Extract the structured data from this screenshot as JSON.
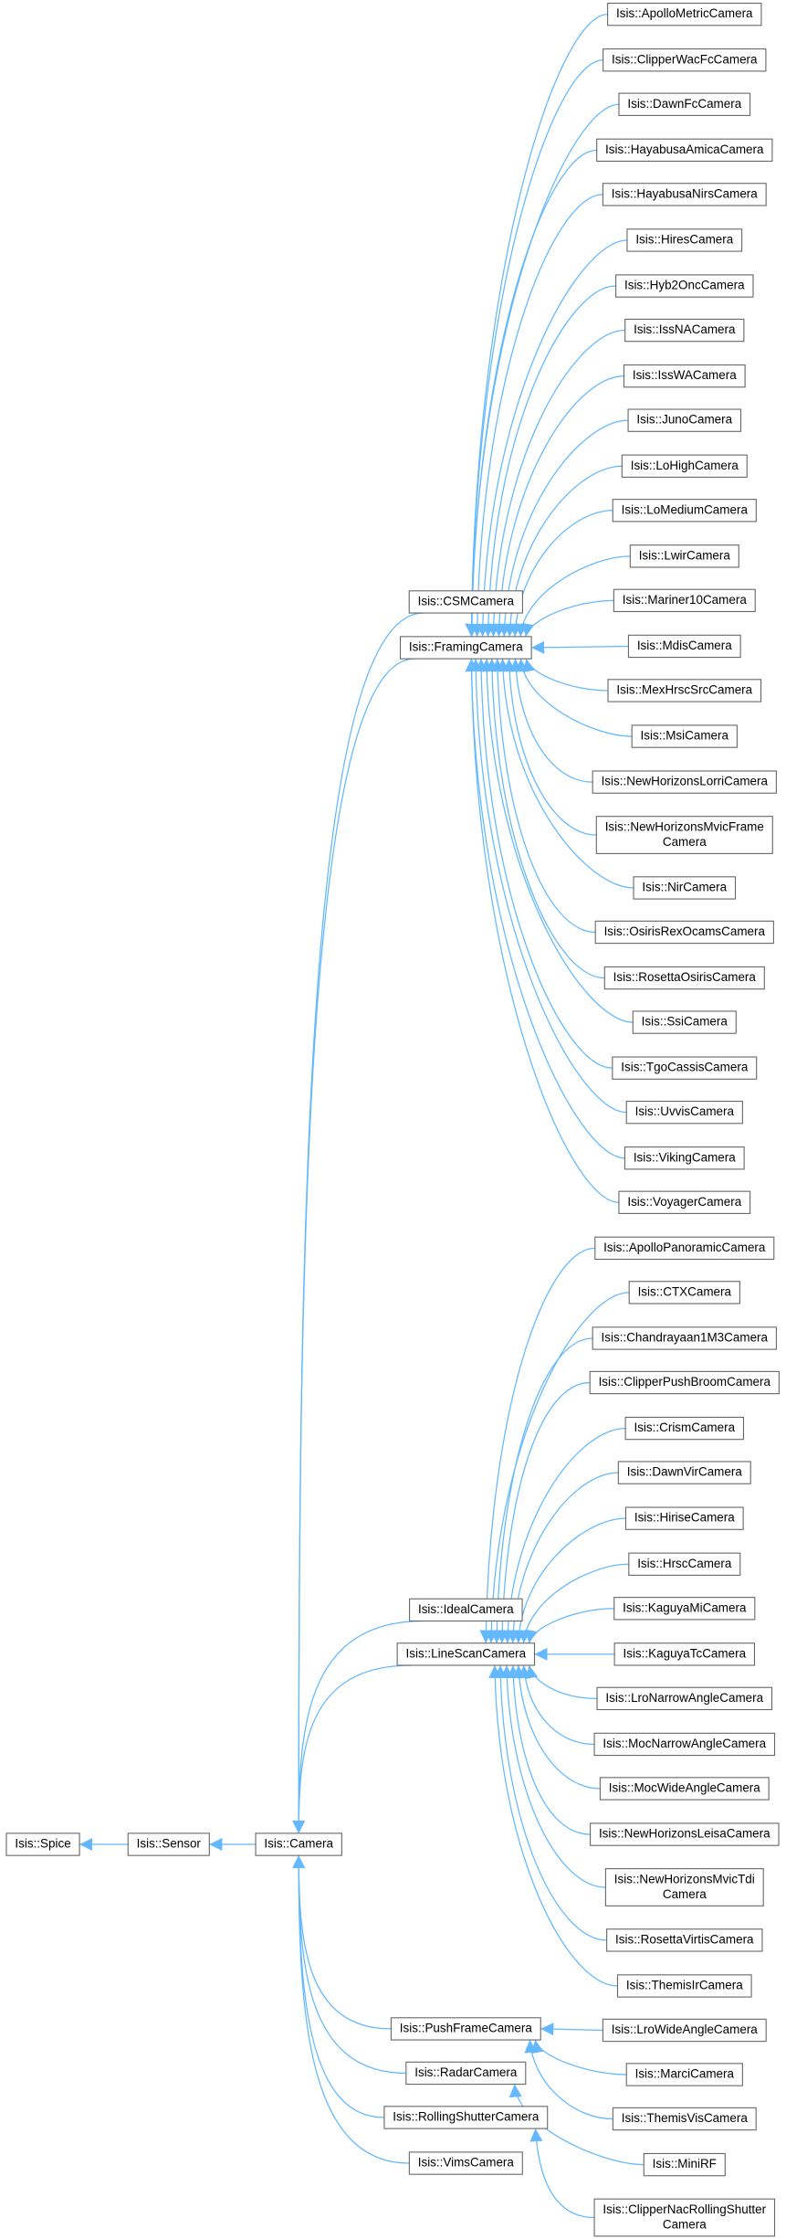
{
  "nodes": [
    {
      "label": [
        "Isis::Spice"
      ]
    },
    {
      "label": [
        "Isis::Sensor"
      ]
    },
    {
      "label": [
        "Isis::Camera"
      ]
    },
    {
      "label": [
        "Isis::CSMCamera"
      ]
    },
    {
      "label": [
        "Isis::FramingCamera"
      ]
    },
    {
      "label": [
        "Isis::IdealCamera"
      ]
    },
    {
      "label": [
        "Isis::LineScanCamera"
      ]
    },
    {
      "label": [
        "Isis::PushFrameCamera"
      ]
    },
    {
      "label": [
        "Isis::RadarCamera"
      ]
    },
    {
      "label": [
        "Isis::RollingShutterCamera"
      ]
    },
    {
      "label": [
        "Isis::VimsCamera"
      ]
    },
    {
      "label": [
        "Isis::ApolloMetricCamera"
      ]
    },
    {
      "label": [
        "Isis::ClipperWacFcCamera"
      ]
    },
    {
      "label": [
        "Isis::DawnFcCamera"
      ]
    },
    {
      "label": [
        "Isis::HayabusaAmicaCamera"
      ]
    },
    {
      "label": [
        "Isis::HayabusaNirsCamera"
      ]
    },
    {
      "label": [
        "Isis::HiresCamera"
      ]
    },
    {
      "label": [
        "Isis::Hyb2OncCamera"
      ]
    },
    {
      "label": [
        "Isis::IssNACamera"
      ]
    },
    {
      "label": [
        "Isis::IssWACamera"
      ]
    },
    {
      "label": [
        "Isis::JunoCamera"
      ]
    },
    {
      "label": [
        "Isis::LoHighCamera"
      ]
    },
    {
      "label": [
        "Isis::LoMediumCamera"
      ]
    },
    {
      "label": [
        "Isis::LwirCamera"
      ]
    },
    {
      "label": [
        "Isis::Mariner10Camera"
      ]
    },
    {
      "label": [
        "Isis::MdisCamera"
      ]
    },
    {
      "label": [
        "Isis::MexHrscSrcCamera"
      ]
    },
    {
      "label": [
        "Isis::MsiCamera"
      ]
    },
    {
      "label": [
        "Isis::NewHorizonsLorriCamera"
      ]
    },
    {
      "label": [
        "Isis::NewHorizonsMvicFrame",
        "Camera"
      ]
    },
    {
      "label": [
        "Isis::NirCamera"
      ]
    },
    {
      "label": [
        "Isis::OsirisRexOcamsCamera"
      ]
    },
    {
      "label": [
        "Isis::RosettaOsirisCamera"
      ]
    },
    {
      "label": [
        "Isis::SsiCamera"
      ]
    },
    {
      "label": [
        "Isis::TgoCassisCamera"
      ]
    },
    {
      "label": [
        "Isis::UvvisCamera"
      ]
    },
    {
      "label": [
        "Isis::VikingCamera"
      ]
    },
    {
      "label": [
        "Isis::VoyagerCamera"
      ]
    },
    {
      "label": [
        "Isis::ApolloPanoramicCamera"
      ]
    },
    {
      "label": [
        "Isis::CTXCamera"
      ]
    },
    {
      "label": [
        "Isis::Chandrayaan1M3Camera"
      ]
    },
    {
      "label": [
        "Isis::ClipperPushBroomCamera"
      ]
    },
    {
      "label": [
        "Isis::CrismCamera"
      ]
    },
    {
      "label": [
        "Isis::DawnVirCamera"
      ]
    },
    {
      "label": [
        "Isis::HiriseCamera"
      ]
    },
    {
      "label": [
        "Isis::HrscCamera"
      ]
    },
    {
      "label": [
        "Isis::KaguyaMiCamera"
      ]
    },
    {
      "label": [
        "Isis::KaguyaTcCamera"
      ]
    },
    {
      "label": [
        "Isis::LroNarrowAngleCamera"
      ]
    },
    {
      "label": [
        "Isis::MocNarrowAngleCamera"
      ]
    },
    {
      "label": [
        "Isis::MocWideAngleCamera"
      ]
    },
    {
      "label": [
        "Isis::NewHorizonsLeisaCamera"
      ]
    },
    {
      "label": [
        "Isis::NewHorizonsMvicTdi",
        "Camera"
      ]
    },
    {
      "label": [
        "Isis::RosettaVirtisCamera"
      ]
    },
    {
      "label": [
        "Isis::ThemisIrCamera"
      ]
    },
    {
      "label": [
        "Isis::LroWideAngleCamera"
      ]
    },
    {
      "label": [
        "Isis::MarciCamera"
      ]
    },
    {
      "label": [
        "Isis::ThemisVisCamera"
      ]
    },
    {
      "label": [
        "Isis::MiniRF"
      ]
    },
    {
      "label": [
        "Isis::ClipperNacRollingShutter",
        "Camera"
      ]
    }
  ]
}
